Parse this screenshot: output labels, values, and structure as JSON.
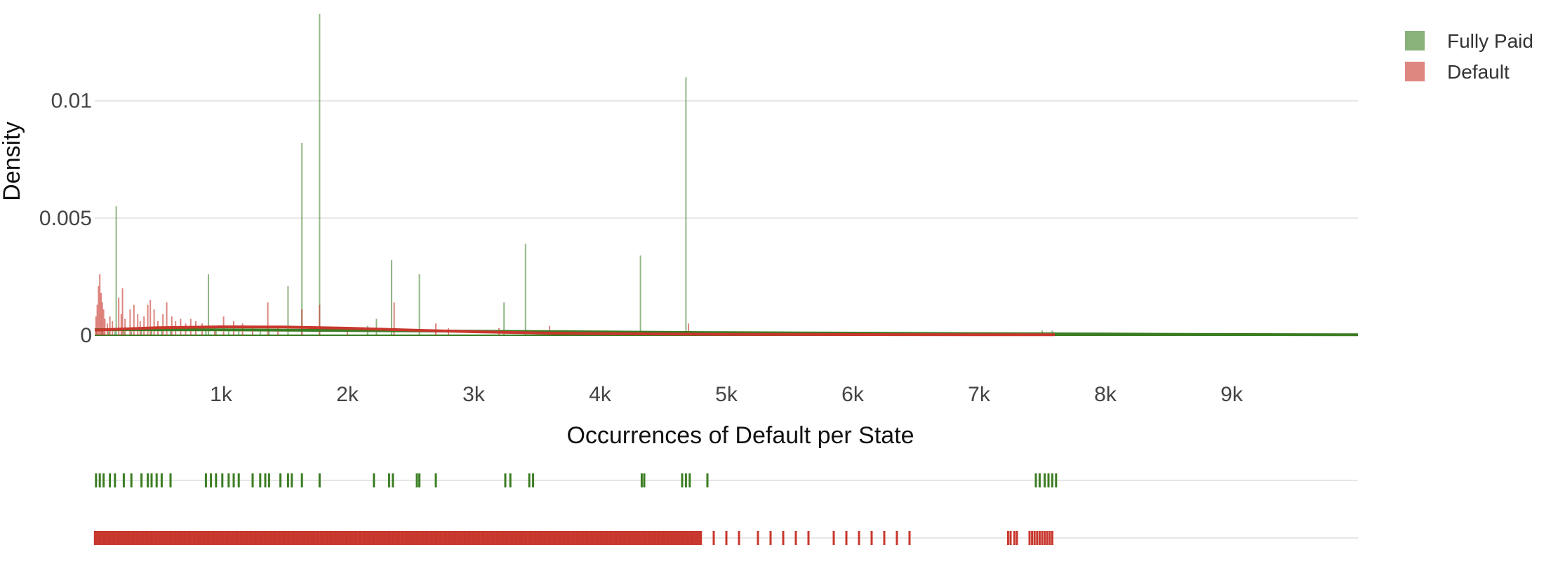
{
  "chart_data": {
    "type": "bar",
    "subtype": "distplot",
    "title": "",
    "xlabel": "Occurrences of Default per State",
    "ylabel": "Density",
    "xlim": [
      0,
      10000
    ],
    "ylim": [
      0,
      0.0137
    ],
    "x_ticks": [
      {
        "value": 1000,
        "label": "1k"
      },
      {
        "value": 2000,
        "label": "2k"
      },
      {
        "value": 3000,
        "label": "3k"
      },
      {
        "value": 4000,
        "label": "4k"
      },
      {
        "value": 5000,
        "label": "5k"
      },
      {
        "value": 6000,
        "label": "6k"
      },
      {
        "value": 7000,
        "label": "7k"
      },
      {
        "value": 8000,
        "label": "8k"
      },
      {
        "value": 9000,
        "label": "9k"
      }
    ],
    "y_ticks": [
      {
        "value": 0,
        "label": "0"
      },
      {
        "value": 0.005,
        "label": "0.005"
      },
      {
        "value": 0.01,
        "label": "0.01"
      }
    ],
    "grid": "horizontal",
    "legend_position": "top-right",
    "histogram_bin_width": 10,
    "series": [
      {
        "name": "Fully Paid",
        "color": "#3a7d22",
        "bars": [
          {
            "x": 10,
            "y": 0.0002
          },
          {
            "x": 60,
            "y": 0.00025
          },
          {
            "x": 110,
            "y": 0.0002
          },
          {
            "x": 160,
            "y": 0.0003
          },
          {
            "x": 170,
            "y": 0.0055
          },
          {
            "x": 230,
            "y": 0.0002
          },
          {
            "x": 290,
            "y": 0.0002
          },
          {
            "x": 370,
            "y": 0.0002
          },
          {
            "x": 450,
            "y": 0.0002
          },
          {
            "x": 530,
            "y": 0.0002
          },
          {
            "x": 600,
            "y": 0.0002
          },
          {
            "x": 880,
            "y": 0.0002
          },
          {
            "x": 900,
            "y": 0.0026
          },
          {
            "x": 960,
            "y": 0.0002
          },
          {
            "x": 1060,
            "y": 0.0002
          },
          {
            "x": 1140,
            "y": 0.0002
          },
          {
            "x": 1310,
            "y": 0.0002
          },
          {
            "x": 1380,
            "y": 0.0002
          },
          {
            "x": 1530,
            "y": 0.0021
          },
          {
            "x": 1640,
            "y": 0.0082
          },
          {
            "x": 1780,
            "y": 0.0137
          },
          {
            "x": 2160,
            "y": 0.0004
          },
          {
            "x": 2230,
            "y": 0.0007
          },
          {
            "x": 2350,
            "y": 0.0032
          },
          {
            "x": 2570,
            "y": 0.0026
          },
          {
            "x": 3240,
            "y": 0.0014
          },
          {
            "x": 3410,
            "y": 0.0039
          },
          {
            "x": 4320,
            "y": 0.0034
          },
          {
            "x": 4680,
            "y": 0.011
          },
          {
            "x": 7500,
            "y": 0.0002
          },
          {
            "x": 7580,
            "y": 0.0002
          }
        ],
        "kde": [
          {
            "x": 0,
            "y": 0.00024
          },
          {
            "x": 1000,
            "y": 0.00023
          },
          {
            "x": 2000,
            "y": 0.0002
          },
          {
            "x": 3000,
            "y": 0.00017
          },
          {
            "x": 4000,
            "y": 0.00014
          },
          {
            "x": 5000,
            "y": 0.00011
          },
          {
            "x": 6000,
            "y": 9e-05
          },
          {
            "x": 7000,
            "y": 7e-05
          },
          {
            "x": 8000,
            "y": 5e-05
          },
          {
            "x": 9000,
            "y": 3e-05
          },
          {
            "x": 10000,
            "y": 2e-05
          }
        ],
        "rug": [
          10,
          40,
          70,
          120,
          160,
          230,
          290,
          370,
          420,
          450,
          490,
          530,
          600,
          880,
          920,
          960,
          1010,
          1060,
          1100,
          1140,
          1250,
          1310,
          1350,
          1380,
          1470,
          1530,
          1560,
          1640,
          1780,
          2210,
          2330,
          2360,
          2550,
          2570,
          2700,
          3250,
          3290,
          3440,
          3470,
          4330,
          4350,
          4650,
          4680,
          4710,
          4850,
          7450,
          7480,
          7520,
          7550,
          7580,
          7610
        ]
      },
      {
        "name": "Default",
        "color": "#c8372d",
        "bars": [
          {
            "x": 10,
            "y": 0.0008
          },
          {
            "x": 20,
            "y": 0.0013
          },
          {
            "x": 30,
            "y": 0.0021
          },
          {
            "x": 40,
            "y": 0.0026
          },
          {
            "x": 50,
            "y": 0.0018
          },
          {
            "x": 60,
            "y": 0.0014
          },
          {
            "x": 70,
            "y": 0.0011
          },
          {
            "x": 80,
            "y": 0.0007
          },
          {
            "x": 100,
            "y": 0.0005
          },
          {
            "x": 120,
            "y": 0.0008
          },
          {
            "x": 140,
            "y": 0.0006
          },
          {
            "x": 190,
            "y": 0.0016
          },
          {
            "x": 210,
            "y": 0.0009
          },
          {
            "x": 220,
            "y": 0.002
          },
          {
            "x": 240,
            "y": 0.0007
          },
          {
            "x": 280,
            "y": 0.0011
          },
          {
            "x": 310,
            "y": 0.0013
          },
          {
            "x": 340,
            "y": 0.0009
          },
          {
            "x": 360,
            "y": 0.0006
          },
          {
            "x": 390,
            "y": 0.0008
          },
          {
            "x": 420,
            "y": 0.0013
          },
          {
            "x": 440,
            "y": 0.0015
          },
          {
            "x": 470,
            "y": 0.0011
          },
          {
            "x": 500,
            "y": 0.0006
          },
          {
            "x": 540,
            "y": 0.0009
          },
          {
            "x": 570,
            "y": 0.0014
          },
          {
            "x": 610,
            "y": 0.0008
          },
          {
            "x": 640,
            "y": 0.0006
          },
          {
            "x": 680,
            "y": 0.0007
          },
          {
            "x": 720,
            "y": 0.0005
          },
          {
            "x": 760,
            "y": 0.0007
          },
          {
            "x": 800,
            "y": 0.0006
          },
          {
            "x": 850,
            "y": 0.0005
          },
          {
            "x": 950,
            "y": 0.0004
          },
          {
            "x": 1020,
            "y": 0.0008
          },
          {
            "x": 1100,
            "y": 0.0006
          },
          {
            "x": 1170,
            "y": 0.0005
          },
          {
            "x": 1250,
            "y": 0.0004
          },
          {
            "x": 1370,
            "y": 0.0014
          },
          {
            "x": 1450,
            "y": 0.0004
          },
          {
            "x": 1640,
            "y": 0.0011
          },
          {
            "x": 1780,
            "y": 0.0013
          },
          {
            "x": 2000,
            "y": 0.0002
          },
          {
            "x": 2370,
            "y": 0.0014
          },
          {
            "x": 2700,
            "y": 0.0005
          },
          {
            "x": 2800,
            "y": 0.0003
          },
          {
            "x": 3200,
            "y": 0.0003
          },
          {
            "x": 3600,
            "y": 0.0004
          },
          {
            "x": 4700,
            "y": 0.0005
          }
        ],
        "kde": [
          {
            "x": 0,
            "y": 0.00022
          },
          {
            "x": 500,
            "y": 0.00032
          },
          {
            "x": 1000,
            "y": 0.00036
          },
          {
            "x": 1500,
            "y": 0.00035
          },
          {
            "x": 2000,
            "y": 0.0003
          },
          {
            "x": 2500,
            "y": 0.00022
          },
          {
            "x": 3000,
            "y": 0.00015
          },
          {
            "x": 3500,
            "y": 0.0001
          },
          {
            "x": 4000,
            "y": 7e-05
          },
          {
            "x": 5000,
            "y": 4e-05
          },
          {
            "x": 6000,
            "y": 3e-05
          },
          {
            "x": 7000,
            "y": 2e-05
          },
          {
            "x": 7600,
            "y": 2e-05
          }
        ],
        "rug_dense_range": [
          0,
          4800
        ],
        "rug": [
          4900,
          5000,
          5100,
          5250,
          5350,
          5450,
          5550,
          5650,
          5850,
          5950,
          6050,
          6150,
          6250,
          6350,
          6450,
          7230,
          7250,
          7280,
          7300,
          7400,
          7420,
          7440,
          7460,
          7480,
          7500,
          7520,
          7540,
          7560,
          7580
        ]
      }
    ]
  }
}
